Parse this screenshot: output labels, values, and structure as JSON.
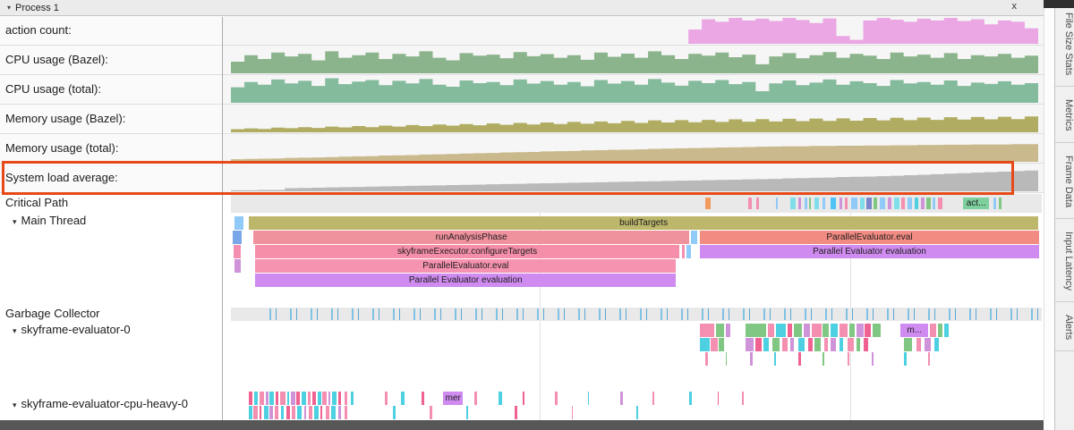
{
  "icons": {
    "collapse": "▾",
    "close": "x"
  },
  "header": {
    "process": "Process 1"
  },
  "right_tabs": {
    "file_size_stats": "File Size Stats",
    "metrics": "Metrics",
    "frame_data": "Frame Data",
    "input_latency": "Input Latency",
    "alerts": "Alerts"
  },
  "sections": {
    "critical_path": "Critical Path",
    "main_thread": "Main Thread",
    "garbage_collector": "Garbage Collector",
    "evaluator0": "skyframe-evaluator-0",
    "cpu_heavy": "skyframe-evaluator-cpu-heavy-0"
  },
  "highlight": {
    "color": "#e64a19",
    "track": "System load average:"
  },
  "counters": [
    {
      "label": "action count:",
      "color": "#eba6e4",
      "values": [
        0,
        0,
        0,
        0,
        0,
        0,
        0,
        0,
        0,
        0,
        0,
        0,
        0,
        0,
        0,
        0,
        0,
        0,
        0,
        0,
        0,
        0,
        0,
        0,
        0,
        0,
        0,
        0,
        0,
        0,
        0,
        0,
        0,
        0,
        0.55,
        0.95,
        0.85,
        1,
        0.9,
        0.97,
        0.88,
        1,
        0.92,
        0.8,
        0.98,
        0.3,
        0.15,
        0.9,
        1,
        0.93,
        0.85,
        0.97,
        0.9,
        1,
        0.88,
        0.95,
        0.75,
        0.9,
        0.85,
        0.6
      ]
    },
    {
      "label": "CPU usage (Bazel):",
      "color": "#8cb48c",
      "values": [
        0.45,
        0.7,
        0.55,
        0.8,
        0.65,
        0.75,
        0.5,
        0.85,
        0.6,
        0.7,
        0.8,
        0.55,
        0.75,
        0.65,
        0.85,
        0.6,
        0.5,
        0.78,
        0.68,
        0.72,
        0.58,
        0.82,
        0.66,
        0.74,
        0.6,
        0.7,
        0.52,
        0.8,
        0.64,
        0.76,
        0.6,
        0.85,
        0.7,
        0.55,
        0.75,
        0.68,
        0.8,
        0.62,
        0.72,
        0.35,
        0.65,
        0.78,
        0.58,
        0.7,
        0.82,
        0.6,
        0.75,
        0.68,
        0.55,
        0.8,
        0.65,
        0.72,
        0.6,
        0.78,
        0.55,
        0.7,
        0.65,
        0.75,
        0.6,
        0.68
      ]
    },
    {
      "label": "CPU usage (total):",
      "color": "#85bb9d",
      "values": [
        0.6,
        0.8,
        0.7,
        0.9,
        0.75,
        0.85,
        0.65,
        0.95,
        0.72,
        0.82,
        0.88,
        0.68,
        0.85,
        0.75,
        0.92,
        0.7,
        0.62,
        0.86,
        0.76,
        0.8,
        0.68,
        0.9,
        0.74,
        0.84,
        0.7,
        0.8,
        0.64,
        0.88,
        0.74,
        0.84,
        0.7,
        0.92,
        0.78,
        0.66,
        0.85,
        0.76,
        0.88,
        0.72,
        0.8,
        0.45,
        0.75,
        0.86,
        0.68,
        0.78,
        0.9,
        0.7,
        0.83,
        0.76,
        0.65,
        0.88,
        0.75,
        0.8,
        0.7,
        0.86,
        0.65,
        0.78,
        0.73,
        0.83,
        0.7,
        0.76
      ]
    },
    {
      "label": "Memory usage (Bazel):",
      "color": "#b0ad62",
      "values": [
        0.12,
        0.15,
        0.13,
        0.18,
        0.16,
        0.2,
        0.17,
        0.22,
        0.19,
        0.24,
        0.2,
        0.26,
        0.22,
        0.28,
        0.24,
        0.3,
        0.26,
        0.32,
        0.27,
        0.34,
        0.29,
        0.36,
        0.3,
        0.38,
        0.32,
        0.4,
        0.33,
        0.42,
        0.35,
        0.44,
        0.36,
        0.46,
        0.38,
        0.47,
        0.39,
        0.48,
        0.4,
        0.5,
        0.41,
        0.51,
        0.42,
        0.52,
        0.43,
        0.53,
        0.44,
        0.54,
        0.45,
        0.55,
        0.46,
        0.56,
        0.47,
        0.57,
        0.48,
        0.58,
        0.49,
        0.59,
        0.5,
        0.6,
        0.51,
        0.61
      ]
    },
    {
      "label": "Memory usage (total):",
      "color": "#c9b98c",
      "values": [
        0.1,
        0.11,
        0.12,
        0.13,
        0.15,
        0.16,
        0.17,
        0.18,
        0.2,
        0.21,
        0.22,
        0.24,
        0.25,
        0.26,
        0.28,
        0.29,
        0.3,
        0.32,
        0.33,
        0.34,
        0.36,
        0.37,
        0.38,
        0.4,
        0.41,
        0.42,
        0.44,
        0.45,
        0.46,
        0.47,
        0.48,
        0.5,
        0.51,
        0.52,
        0.53,
        0.54,
        0.55,
        0.56,
        0.57,
        0.58,
        0.59,
        0.6,
        0.6,
        0.61,
        0.61,
        0.62,
        0.62,
        0.63,
        0.63,
        0.64,
        0.64,
        0.65,
        0.65,
        0.66,
        0.66,
        0.67,
        0.67,
        0.67,
        0.68,
        0.68
      ]
    },
    {
      "label": "System load average:",
      "color": "#b9b9b9",
      "values": [
        0.04,
        0.04,
        0.05,
        0.05,
        0.12,
        0.13,
        0.14,
        0.15,
        0.16,
        0.17,
        0.18,
        0.19,
        0.2,
        0.21,
        0.22,
        0.23,
        0.24,
        0.25,
        0.26,
        0.27,
        0.28,
        0.29,
        0.3,
        0.31,
        0.32,
        0.33,
        0.34,
        0.35,
        0.36,
        0.37,
        0.38,
        0.39,
        0.4,
        0.41,
        0.42,
        0.43,
        0.44,
        0.45,
        0.46,
        0.47,
        0.48,
        0.5,
        0.51,
        0.52,
        0.53,
        0.55,
        0.56,
        0.57,
        0.58,
        0.6,
        0.62,
        0.64,
        0.66,
        0.68,
        0.7,
        0.72,
        0.74,
        0.76,
        0.78,
        0.8
      ]
    }
  ],
  "critical_path_slices": [
    {
      "x": 0.585,
      "w": 0.007,
      "c": "#f29b5c"
    },
    {
      "x": 0.638,
      "w": 0.004,
      "c": "#f48fb1"
    },
    {
      "x": 0.648,
      "w": 0.003,
      "c": "#f48fb1"
    },
    {
      "x": 0.672,
      "w": 0.002,
      "c": "#90caf9"
    },
    {
      "x": 0.69,
      "w": 0.006,
      "c": "#80deea"
    },
    {
      "x": 0.7,
      "w": 0.003,
      "c": "#ce93d8"
    },
    {
      "x": 0.707,
      "w": 0.004,
      "c": "#90caf9"
    },
    {
      "x": 0.713,
      "w": 0.002,
      "c": "#81c784"
    },
    {
      "x": 0.72,
      "w": 0.005,
      "c": "#80deea"
    },
    {
      "x": 0.73,
      "w": 0.003,
      "c": "#90caf9"
    },
    {
      "x": 0.74,
      "w": 0.006,
      "c": "#4fc3f7"
    },
    {
      "x": 0.75,
      "w": 0.004,
      "c": "#ce93d8"
    },
    {
      "x": 0.757,
      "w": 0.003,
      "c": "#f48fb1"
    },
    {
      "x": 0.765,
      "w": 0.008,
      "c": "#90caf9"
    },
    {
      "x": 0.776,
      "w": 0.005,
      "c": "#80deea"
    },
    {
      "x": 0.784,
      "w": 0.006,
      "c": "#7986cb"
    },
    {
      "x": 0.793,
      "w": 0.004,
      "c": "#81c784"
    },
    {
      "x": 0.8,
      "w": 0.007,
      "c": "#90caf9"
    },
    {
      "x": 0.81,
      "w": 0.005,
      "c": "#ce93d8"
    },
    {
      "x": 0.818,
      "w": 0.006,
      "c": "#80deea"
    },
    {
      "x": 0.827,
      "w": 0.004,
      "c": "#f48fb1"
    },
    {
      "x": 0.834,
      "w": 0.006,
      "c": "#90caf9"
    },
    {
      "x": 0.843,
      "w": 0.005,
      "c": "#4dd0e1"
    },
    {
      "x": 0.851,
      "w": 0.004,
      "c": "#ce93d8"
    },
    {
      "x": 0.858,
      "w": 0.005,
      "c": "#81c784"
    },
    {
      "x": 0.865,
      "w": 0.004,
      "c": "#90caf9"
    },
    {
      "x": 0.872,
      "w": 0.005,
      "c": "#f48fb1"
    },
    {
      "x": 0.903,
      "w": 0.032,
      "c": "#7ecf9e",
      "label": "act..."
    },
    {
      "x": 0.94,
      "w": 0.004,
      "c": "#90caf9"
    },
    {
      "x": 0.947,
      "w": 0.003,
      "c": "#81c784"
    }
  ],
  "main_thread_rows": [
    [
      {
        "x": 0.004,
        "w": 0.012,
        "c": "#90caf9"
      },
      {
        "x": 0.022,
        "w": 0.974,
        "c": "#bdb76b",
        "label": "buildTargets"
      }
    ],
    [
      {
        "x": 0.002,
        "w": 0.011,
        "c": "#7aa7e8"
      },
      {
        "x": 0.028,
        "w": 0.537,
        "c": "#f0919e",
        "label": "runAnalysisPhase"
      },
      {
        "x": 0.567,
        "w": 0.008,
        "c": "#90caf9"
      },
      {
        "x": 0.578,
        "w": 0.419,
        "c": "#f28b82",
        "label": "ParallelEvaluator.eval"
      }
    ],
    [
      {
        "x": 0.003,
        "w": 0.009,
        "c": "#f48fb1"
      },
      {
        "x": 0.03,
        "w": 0.523,
        "c": "#f58ea8",
        "label": "skyframeExecutor.configureTargets"
      },
      {
        "x": 0.556,
        "w": 0.004,
        "c": "#f48fb1"
      },
      {
        "x": 0.562,
        "w": 0.005,
        "c": "#90caf9"
      },
      {
        "x": 0.578,
        "w": 0.419,
        "c": "#cf8bef",
        "label": "Parallel Evaluator evaluation"
      }
    ],
    [
      {
        "x": 0.004,
        "w": 0.008,
        "c": "#ce93d8"
      },
      {
        "x": 0.03,
        "w": 0.519,
        "c": "#f693b0",
        "label": "ParallelEvaluator.eval"
      }
    ],
    [
      {
        "x": 0.03,
        "w": 0.519,
        "c": "#cf8bef",
        "label": "Parallel Evaluator evaluation"
      }
    ]
  ],
  "evaluator0_rows": [
    [
      {
        "x": 0.578,
        "w": 0.018,
        "c": "#f48fb1"
      },
      {
        "x": 0.598,
        "w": 0.01,
        "c": "#81c784"
      },
      {
        "x": 0.61,
        "w": 0.006,
        "c": "#ce93d8"
      },
      {
        "x": 0.635,
        "w": 0.025,
        "c": "#81c784"
      },
      {
        "x": 0.662,
        "w": 0.008,
        "c": "#f48fb1"
      },
      {
        "x": 0.672,
        "w": 0.012,
        "c": "#4dd0e1"
      },
      {
        "x": 0.686,
        "w": 0.006,
        "c": "#f06292"
      },
      {
        "x": 0.694,
        "w": 0.01,
        "c": "#81c784"
      },
      {
        "x": 0.706,
        "w": 0.008,
        "c": "#ce93d8"
      },
      {
        "x": 0.716,
        "w": 0.012,
        "c": "#f48fb1"
      },
      {
        "x": 0.73,
        "w": 0.007,
        "c": "#81c784"
      },
      {
        "x": 0.739,
        "w": 0.009,
        "c": "#4dd0e1"
      },
      {
        "x": 0.75,
        "w": 0.011,
        "c": "#f48fb1"
      },
      {
        "x": 0.763,
        "w": 0.006,
        "c": "#81c784"
      },
      {
        "x": 0.771,
        "w": 0.009,
        "c": "#ce93d8"
      },
      {
        "x": 0.782,
        "w": 0.007,
        "c": "#f06292"
      },
      {
        "x": 0.791,
        "w": 0.01,
        "c": "#81c784"
      },
      {
        "x": 0.826,
        "w": 0.034,
        "c": "#cf8bef",
        "label": "m..."
      },
      {
        "x": 0.862,
        "w": 0.008,
        "c": "#f48fb1"
      },
      {
        "x": 0.872,
        "w": 0.006,
        "c": "#81c784"
      },
      {
        "x": 0.88,
        "w": 0.005,
        "c": "#4dd0e1"
      }
    ],
    [
      {
        "x": 0.578,
        "w": 0.012,
        "c": "#4dd0e1"
      },
      {
        "x": 0.592,
        "w": 0.008,
        "c": "#f48fb1"
      },
      {
        "x": 0.602,
        "w": 0.006,
        "c": "#81c784"
      },
      {
        "x": 0.635,
        "w": 0.01,
        "c": "#ce93d8"
      },
      {
        "x": 0.647,
        "w": 0.008,
        "c": "#f06292"
      },
      {
        "x": 0.657,
        "w": 0.006,
        "c": "#4dd0e1"
      },
      {
        "x": 0.668,
        "w": 0.009,
        "c": "#81c784"
      },
      {
        "x": 0.68,
        "w": 0.006,
        "c": "#f48fb1"
      },
      {
        "x": 0.69,
        "w": 0.004,
        "c": "#ce93d8"
      },
      {
        "x": 0.7,
        "w": 0.008,
        "c": "#4dd0e1"
      },
      {
        "x": 0.712,
        "w": 0.005,
        "c": "#f06292"
      },
      {
        "x": 0.72,
        "w": 0.007,
        "c": "#81c784"
      },
      {
        "x": 0.732,
        "w": 0.004,
        "c": "#f48fb1"
      },
      {
        "x": 0.74,
        "w": 0.006,
        "c": "#ce93d8"
      },
      {
        "x": 0.75,
        "w": 0.005,
        "c": "#4dd0e1"
      },
      {
        "x": 0.76,
        "w": 0.008,
        "c": "#f48fb1"
      },
      {
        "x": 0.772,
        "w": 0.004,
        "c": "#81c784"
      },
      {
        "x": 0.78,
        "w": 0.006,
        "c": "#f06292"
      },
      {
        "x": 0.83,
        "w": 0.01,
        "c": "#81c784"
      },
      {
        "x": 0.845,
        "w": 0.006,
        "c": "#f48fb1"
      },
      {
        "x": 0.855,
        "w": 0.008,
        "c": "#ce93d8"
      },
      {
        "x": 0.868,
        "w": 0.005,
        "c": "#4dd0e1"
      }
    ],
    [
      {
        "x": 0.585,
        "w": 0.003,
        "c": "#f48fb1"
      },
      {
        "x": 0.61,
        "w": 0.002,
        "c": "#81c784"
      },
      {
        "x": 0.64,
        "w": 0.003,
        "c": "#ce93d8"
      },
      {
        "x": 0.67,
        "w": 0.002,
        "c": "#4dd0e1"
      },
      {
        "x": 0.7,
        "w": 0.003,
        "c": "#f06292"
      },
      {
        "x": 0.73,
        "w": 0.002,
        "c": "#81c784"
      },
      {
        "x": 0.76,
        "w": 0.003,
        "c": "#f48fb1"
      },
      {
        "x": 0.79,
        "w": 0.002,
        "c": "#ce93d8"
      },
      {
        "x": 0.83,
        "w": 0.003,
        "c": "#4dd0e1"
      },
      {
        "x": 0.86,
        "w": 0.002,
        "c": "#f48fb1"
      }
    ]
  ],
  "cpu_heavy_rows": [
    [
      {
        "x": 0.022,
        "w": 0.005,
        "c": "#f06292"
      },
      {
        "x": 0.029,
        "w": 0.004,
        "c": "#4dd0e1"
      },
      {
        "x": 0.035,
        "w": 0.006,
        "c": "#f48fb1"
      },
      {
        "x": 0.043,
        "w": 0.003,
        "c": "#ce93d8"
      },
      {
        "x": 0.048,
        "w": 0.005,
        "c": "#4dd0e1"
      },
      {
        "x": 0.055,
        "w": 0.004,
        "c": "#f06292"
      },
      {
        "x": 0.061,
        "w": 0.006,
        "c": "#f48fb1"
      },
      {
        "x": 0.069,
        "w": 0.003,
        "c": "#4dd0e1"
      },
      {
        "x": 0.074,
        "w": 0.005,
        "c": "#ce93d8"
      },
      {
        "x": 0.081,
        "w": 0.004,
        "c": "#f06292"
      },
      {
        "x": 0.087,
        "w": 0.006,
        "c": "#4dd0e1"
      },
      {
        "x": 0.095,
        "w": 0.003,
        "c": "#f48fb1"
      },
      {
        "x": 0.1,
        "w": 0.005,
        "c": "#f06292"
      },
      {
        "x": 0.107,
        "w": 0.004,
        "c": "#4dd0e1"
      },
      {
        "x": 0.113,
        "w": 0.005,
        "c": "#f48fb1"
      },
      {
        "x": 0.12,
        "w": 0.003,
        "c": "#ce93d8"
      },
      {
        "x": 0.125,
        "w": 0.005,
        "c": "#4dd0e1"
      },
      {
        "x": 0.132,
        "w": 0.004,
        "c": "#f06292"
      },
      {
        "x": 0.14,
        "w": 0.004,
        "c": "#f48fb1"
      },
      {
        "x": 0.148,
        "w": 0.003,
        "c": "#4dd0e1"
      },
      {
        "x": 0.19,
        "w": 0.003,
        "c": "#f48fb1"
      },
      {
        "x": 0.21,
        "w": 0.004,
        "c": "#4dd0e1"
      },
      {
        "x": 0.235,
        "w": 0.003,
        "c": "#f06292"
      },
      {
        "x": 0.262,
        "w": 0.024,
        "c": "#cf8bef",
        "label": "mer"
      },
      {
        "x": 0.3,
        "w": 0.003,
        "c": "#f48fb1"
      },
      {
        "x": 0.33,
        "w": 0.004,
        "c": "#4dd0e1"
      },
      {
        "x": 0.36,
        "w": 0.002,
        "c": "#f06292"
      },
      {
        "x": 0.4,
        "w": 0.003,
        "c": "#f48fb1"
      },
      {
        "x": 0.44,
        "w": 0.002,
        "c": "#4dd0e1"
      },
      {
        "x": 0.48,
        "w": 0.003,
        "c": "#ce93d8"
      },
      {
        "x": 0.52,
        "w": 0.002,
        "c": "#f48fb1"
      },
      {
        "x": 0.565,
        "w": 0.003,
        "c": "#4dd0e1"
      },
      {
        "x": 0.6,
        "w": 0.002,
        "c": "#f06292"
      },
      {
        "x": 0.63,
        "w": 0.003,
        "c": "#f48fb1"
      }
    ],
    [
      {
        "x": 0.022,
        "w": 0.004,
        "c": "#4dd0e1"
      },
      {
        "x": 0.028,
        "w": 0.005,
        "c": "#f48fb1"
      },
      {
        "x": 0.035,
        "w": 0.003,
        "c": "#f06292"
      },
      {
        "x": 0.041,
        "w": 0.005,
        "c": "#4dd0e1"
      },
      {
        "x": 0.048,
        "w": 0.004,
        "c": "#ce93d8"
      },
      {
        "x": 0.054,
        "w": 0.005,
        "c": "#f48fb1"
      },
      {
        "x": 0.062,
        "w": 0.003,
        "c": "#4dd0e1"
      },
      {
        "x": 0.068,
        "w": 0.005,
        "c": "#f06292"
      },
      {
        "x": 0.075,
        "w": 0.004,
        "c": "#f48fb1"
      },
      {
        "x": 0.082,
        "w": 0.005,
        "c": "#4dd0e1"
      },
      {
        "x": 0.09,
        "w": 0.003,
        "c": "#ce93d8"
      },
      {
        "x": 0.096,
        "w": 0.004,
        "c": "#f48fb1"
      },
      {
        "x": 0.103,
        "w": 0.005,
        "c": "#4dd0e1"
      },
      {
        "x": 0.11,
        "w": 0.003,
        "c": "#f06292"
      },
      {
        "x": 0.117,
        "w": 0.004,
        "c": "#f48fb1"
      },
      {
        "x": 0.124,
        "w": 0.005,
        "c": "#4dd0e1"
      },
      {
        "x": 0.133,
        "w": 0.003,
        "c": "#ce93d8"
      },
      {
        "x": 0.14,
        "w": 0.004,
        "c": "#f48fb1"
      },
      {
        "x": 0.2,
        "w": 0.003,
        "c": "#4dd0e1"
      },
      {
        "x": 0.245,
        "w": 0.003,
        "c": "#f48fb1"
      },
      {
        "x": 0.29,
        "w": 0.002,
        "c": "#4dd0e1"
      },
      {
        "x": 0.35,
        "w": 0.003,
        "c": "#f06292"
      },
      {
        "x": 0.42,
        "w": 0.002,
        "c": "#f48fb1"
      },
      {
        "x": 0.5,
        "w": 0.002,
        "c": "#4dd0e1"
      }
    ]
  ]
}
